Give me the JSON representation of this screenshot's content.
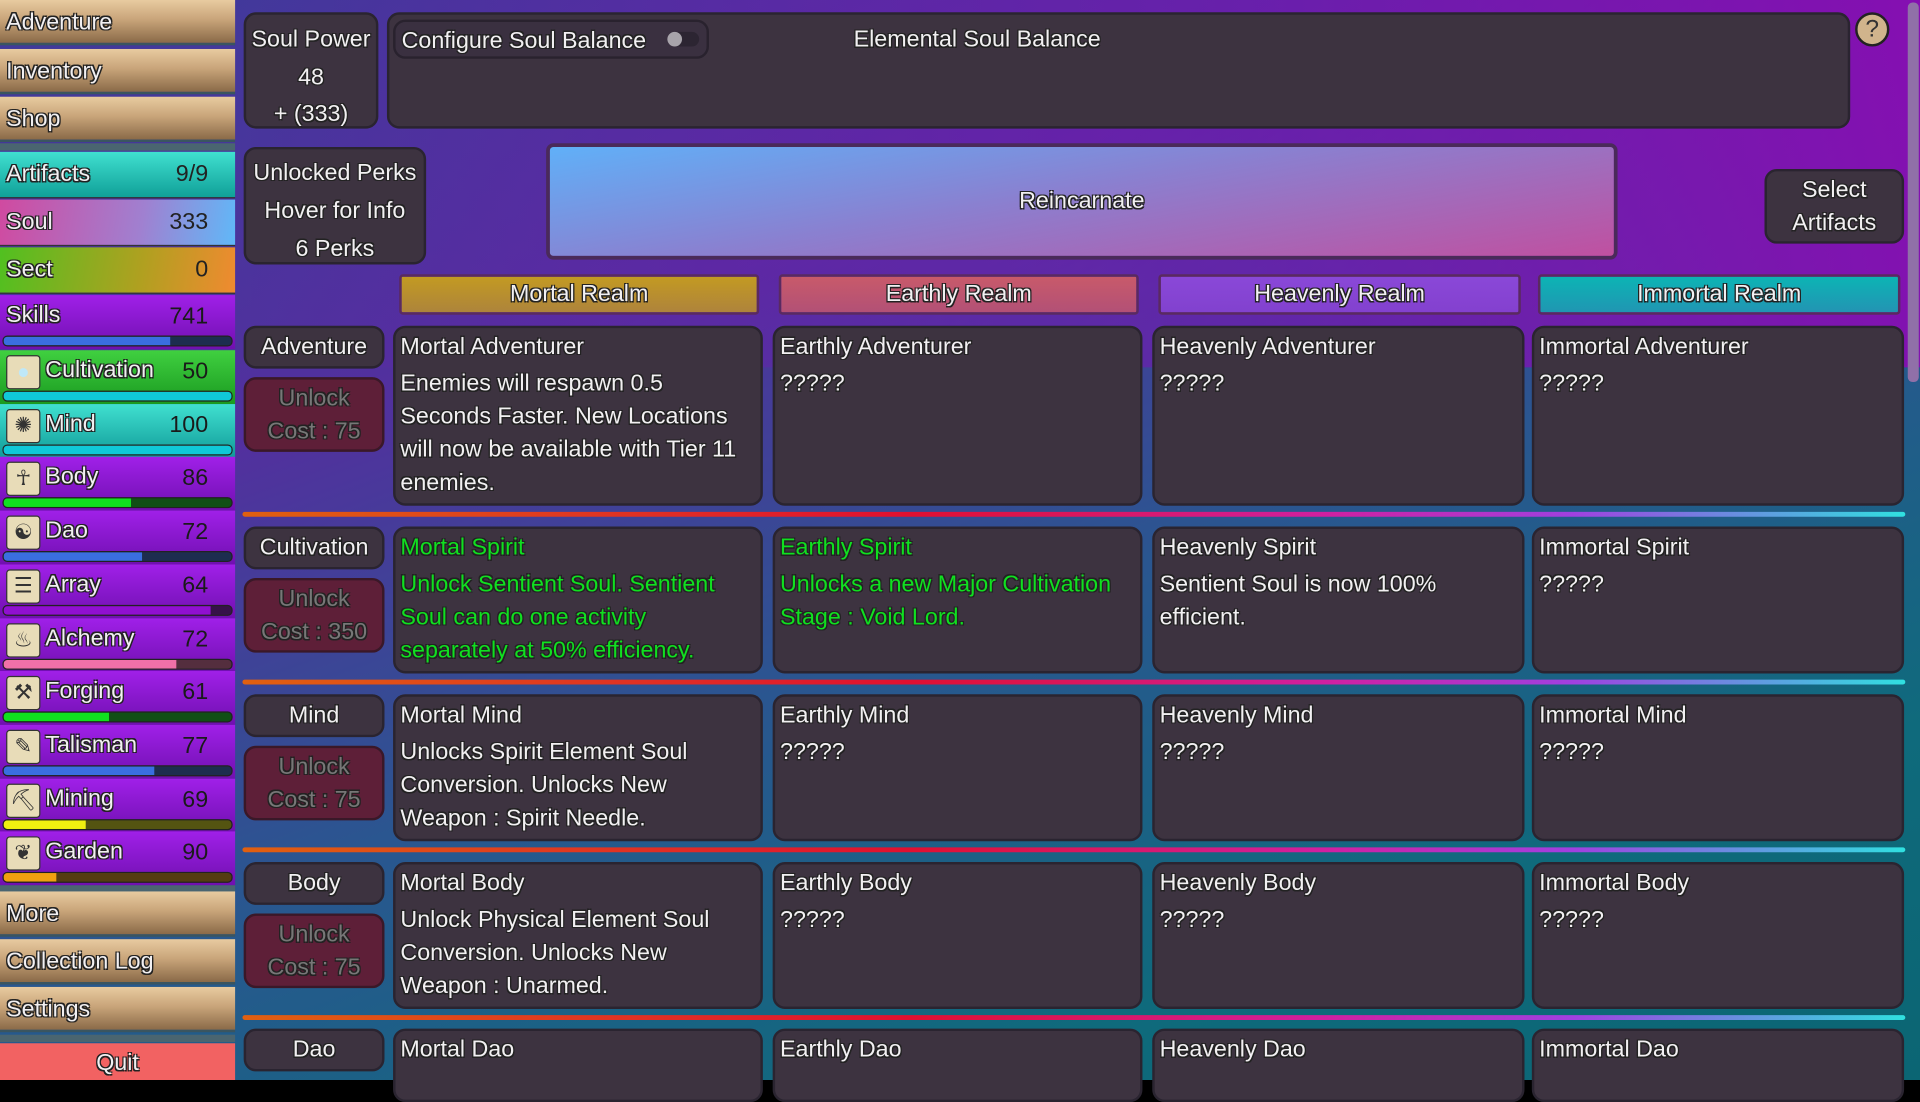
{
  "sidebar": {
    "nav_top": [
      "Adventure",
      "Inventory",
      "Shop"
    ],
    "resources": [
      {
        "label": "Artifacts",
        "value": "9/9"
      },
      {
        "label": "Soul",
        "value": "333"
      },
      {
        "label": "Sect",
        "value": "0"
      }
    ],
    "skills_header": {
      "label": "Skills",
      "value": "741",
      "progress": 0.73,
      "bar_color": "#3a6ee0"
    },
    "skills": [
      {
        "label": "Cultivation",
        "value": "50",
        "progress": 1.0,
        "bar_color": "#10c8d8",
        "icon": "orb-icon"
      },
      {
        "label": "Mind",
        "value": "100",
        "progress": 1.0,
        "bar_color": "#10c8d8",
        "icon": "brain-icon"
      },
      {
        "label": "Body",
        "value": "86",
        "progress": 0.56,
        "bar_color": "#10e020",
        "icon": "body-icon"
      },
      {
        "label": "Dao",
        "value": "72",
        "progress": 0.61,
        "bar_color": "#3a6ee0",
        "icon": "yin-yang-icon"
      },
      {
        "label": "Array",
        "value": "64",
        "progress": 0.91,
        "bar_color": "#9010d0",
        "icon": "bagua-icon"
      },
      {
        "label": "Alchemy",
        "value": "72",
        "progress": 0.76,
        "bar_color": "#f070a8",
        "icon": "cauldron-icon"
      },
      {
        "label": "Forging",
        "value": "61",
        "progress": 0.46,
        "bar_color": "#10e020",
        "icon": "anvil-icon"
      },
      {
        "label": "Talisman",
        "value": "77",
        "progress": 0.66,
        "bar_color": "#3a6ee0",
        "icon": "talisman-icon"
      },
      {
        "label": "Mining",
        "value": "69",
        "progress": 0.36,
        "bar_color": "#f0f010",
        "icon": "pickaxe-icon"
      },
      {
        "label": "Garden",
        "value": "90",
        "progress": 0.23,
        "bar_color": "#f0a010",
        "icon": "plant-icon"
      }
    ],
    "nav_bottom": [
      "More",
      "Collection Log",
      "Settings"
    ],
    "quit": "Quit"
  },
  "soul_power": {
    "title": "Soul Power",
    "value": "48",
    "bonus": "+ (333)"
  },
  "balance": {
    "configure_label": "Configure Soul Balance",
    "toggle_on": false,
    "title": "Elemental Soul Balance"
  },
  "help": "?",
  "perks": {
    "title": "Unlocked Perks",
    "hint": "Hover for Info",
    "count": "6 Perks"
  },
  "reincarnate": "Reincarnate",
  "select_artifacts": [
    "Select",
    "Artifacts"
  ],
  "realms": [
    {
      "label": "Mortal Realm",
      "color": "#c39a22"
    },
    {
      "label": "Earthly Realm",
      "color": "#c85a6a"
    },
    {
      "label": "Heavenly Realm",
      "color": "#8a48d8"
    },
    {
      "label": "Immortal Realm",
      "color": "#0cb4b4"
    }
  ],
  "rows": [
    {
      "label": "Adventure",
      "unlock": "Unlock",
      "cost": "Cost : 75",
      "cells": [
        {
          "title": "Mortal Adventurer",
          "desc": "Enemies will respawn 0.5 Seconds Faster. New Locations will now be available with Tier 11 enemies.",
          "unlocked": false
        },
        {
          "title": "Earthly Adventurer",
          "desc": "?????",
          "unlocked": false
        },
        {
          "title": "Heavenly Adventurer",
          "desc": "?????",
          "unlocked": false
        },
        {
          "title": "Immortal Adventurer",
          "desc": "?????",
          "unlocked": false
        }
      ]
    },
    {
      "label": "Cultivation",
      "unlock": "Unlock",
      "cost": "Cost : 350",
      "cells": [
        {
          "title": "Mortal Spirit",
          "desc": "Unlock Sentient Soul. Sentient Soul can do one activity separately at 50% efficiency.",
          "unlocked": true
        },
        {
          "title": "Earthly Spirit",
          "desc": "Unlocks a new Major Cultivation Stage : Void Lord.",
          "unlocked": true
        },
        {
          "title": "Heavenly Spirit",
          "desc": "Sentient Soul is now 100% efficient.",
          "unlocked": false
        },
        {
          "title": "Immortal Spirit",
          "desc": "?????",
          "unlocked": false
        }
      ]
    },
    {
      "label": "Mind",
      "unlock": "Unlock",
      "cost": "Cost : 75",
      "cells": [
        {
          "title": "Mortal Mind",
          "desc": "Unlocks Spirit Element Soul Conversion. Unlocks New Weapon : Spirit Needle.",
          "unlocked": false
        },
        {
          "title": "Earthly Mind",
          "desc": "?????",
          "unlocked": false
        },
        {
          "title": "Heavenly Mind",
          "desc": "?????",
          "unlocked": false
        },
        {
          "title": "Immortal Mind",
          "desc": "?????",
          "unlocked": false
        }
      ]
    },
    {
      "label": "Body",
      "unlock": "Unlock",
      "cost": "Cost : 75",
      "cells": [
        {
          "title": "Mortal Body",
          "desc": "Unlock Physical Element Soul Conversion. Unlocks New Weapon : Unarmed.",
          "unlocked": false
        },
        {
          "title": "Earthly Body",
          "desc": "?????",
          "unlocked": false
        },
        {
          "title": "Heavenly Body",
          "desc": "?????",
          "unlocked": false
        },
        {
          "title": "Immortal Body",
          "desc": "?????",
          "unlocked": false
        }
      ]
    },
    {
      "label": "Dao",
      "cells": [
        {
          "title": "Mortal Dao",
          "unlocked": false
        },
        {
          "title": "Earthly Dao",
          "unlocked": false
        },
        {
          "title": "Heavenly Dao",
          "unlocked": false
        },
        {
          "title": "Immortal Dao",
          "unlocked": false
        }
      ]
    }
  ]
}
